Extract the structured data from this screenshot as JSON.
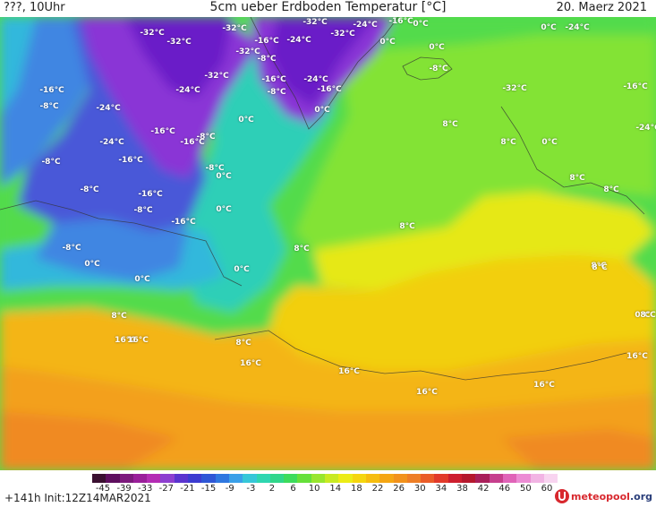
{
  "header": {
    "left_text": "???, 10Uhr",
    "title": "5cm ueber Erdboden Temperatur [°C]",
    "date": "20. Maerz 2021"
  },
  "footer": {
    "init_text": "+141h Init:12Z14MAR2021",
    "logo_text": "meteopool",
    "logo_suffix": ".org"
  },
  "legend": {
    "ticks": [
      "-45",
      "-39",
      "-33",
      "-27",
      "-21",
      "-15",
      "-9",
      "-3",
      "2",
      "6",
      "10",
      "14",
      "18",
      "22",
      "26",
      "30",
      "34",
      "38",
      "42",
      "46",
      "50",
      "60"
    ],
    "colors": [
      "#3a1030",
      "#5e0f5e",
      "#7d1a7d",
      "#9a1f9a",
      "#b42cb4",
      "#8d3fd0",
      "#5a34cf",
      "#3c3cd0",
      "#2f57d6",
      "#2f78e0",
      "#3aa0e8",
      "#36c7d8",
      "#2ed6b0",
      "#30d68a",
      "#3cdc5c",
      "#66e03a",
      "#98e62e",
      "#c8ea22",
      "#ecec16",
      "#f5d60e",
      "#f6bd0e",
      "#f5a613",
      "#f2921b",
      "#ee7e25",
      "#ea5c28",
      "#e23a2a",
      "#cd1e2e",
      "#b5182d",
      "#a91f5a",
      "#c63f8d",
      "#e064b8",
      "#ec8cd4",
      "#f2b4e4",
      "#f8d4f0"
    ]
  },
  "map": {
    "colors": {
      "deep_violet": "#6a1fc8",
      "violet": "#8a34d6",
      "blue": "#4a58d8",
      "sky_blue": "#3f86e2",
      "cyan": "#31b8dc",
      "teal": "#2fcfb7",
      "green_teal": "#33d18f",
      "green": "#52db4c",
      "lime": "#83e336",
      "yellow": "#e6e818",
      "gold": "#f2cf10",
      "orange_yellow": "#f4b514",
      "orange": "#f3a01a",
      "deep_orange": "#f08a22"
    },
    "labels": [
      {
        "text": "-32°C"
      },
      {
        "text": "-32°C"
      },
      {
        "text": "-32°C"
      },
      {
        "text": "-16°C"
      },
      {
        "text": "-24°C"
      },
      {
        "text": "-32°C"
      },
      {
        "text": "-32°C"
      },
      {
        "text": "-8°C"
      },
      {
        "text": "-32°C"
      },
      {
        "text": "-24°C"
      },
      {
        "text": "-16°C"
      },
      {
        "text": "0°C"
      },
      {
        "text": "0°C"
      },
      {
        "text": "0°C"
      },
      {
        "text": "-8°C"
      },
      {
        "text": "0°C"
      },
      {
        "text": "-24°C"
      },
      {
        "text": "-32°C"
      },
      {
        "text": "-16°C"
      },
      {
        "text": "-24°C"
      },
      {
        "text": "-16°C"
      },
      {
        "text": "-8°C"
      },
      {
        "text": "-24°C"
      },
      {
        "text": "-24°C"
      },
      {
        "text": "-32°C"
      },
      {
        "text": "0°C"
      },
      {
        "text": "0°C"
      },
      {
        "text": "8°C"
      },
      {
        "text": "8°C"
      },
      {
        "text": "0°C"
      },
      {
        "text": "-16°C"
      },
      {
        "text": "-24°C"
      },
      {
        "text": "-16°C"
      },
      {
        "text": "-8°C"
      },
      {
        "text": "-24°C"
      },
      {
        "text": "-16°C"
      },
      {
        "text": "-8°C"
      },
      {
        "text": "-8°C"
      },
      {
        "text": "0°C"
      },
      {
        "text": "-16°C"
      },
      {
        "text": "8°C"
      },
      {
        "text": "8°C"
      },
      {
        "text": "-8°C"
      },
      {
        "text": "-16°C"
      },
      {
        "text": "-16°C"
      },
      {
        "text": "-8°C"
      },
      {
        "text": "8°C"
      },
      {
        "text": "-8°C"
      },
      {
        "text": "0°C"
      },
      {
        "text": "8°C"
      },
      {
        "text": "0°C"
      },
      {
        "text": "-8°C"
      },
      {
        "text": "-16°C"
      },
      {
        "text": "0°C"
      },
      {
        "text": "0°C"
      },
      {
        "text": "8°C"
      },
      {
        "text": "8°C"
      },
      {
        "text": "0°C"
      },
      {
        "text": "8°C"
      },
      {
        "text": "16°C"
      },
      {
        "text": "8°C"
      },
      {
        "text": "16°C"
      },
      {
        "text": "16°C"
      },
      {
        "text": "16°C"
      },
      {
        "text": "16°C"
      },
      {
        "text": "16°C"
      },
      {
        "text": "16°C"
      },
      {
        "text": "8°C"
      }
    ]
  }
}
